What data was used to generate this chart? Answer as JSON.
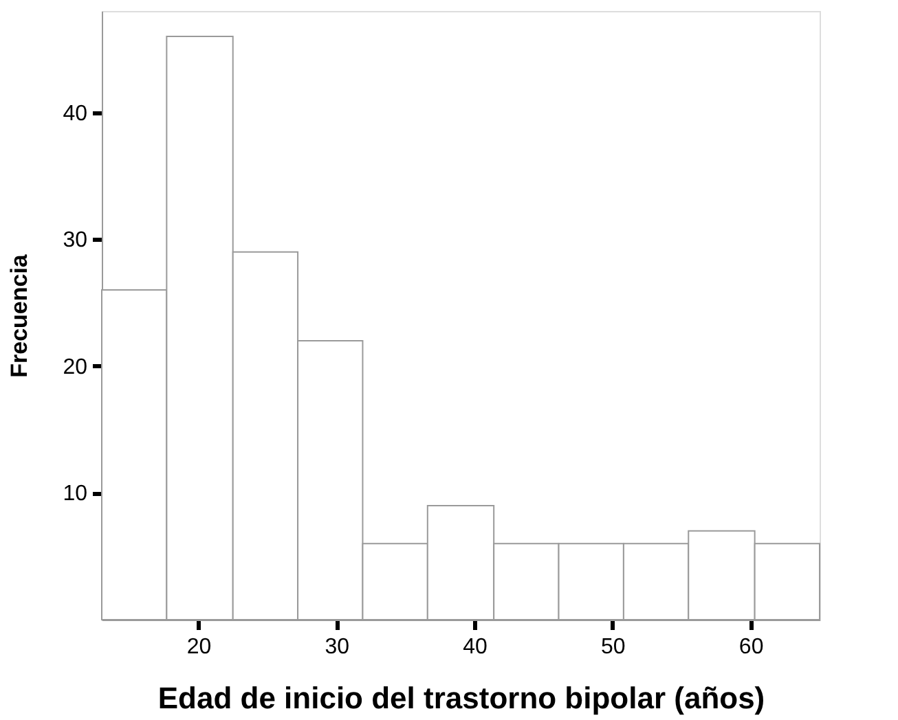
{
  "chart_data": {
    "type": "histogram",
    "xlabel": "Edad de inicio del trastorno bipolar (años)",
    "ylabel": "Frecuencia",
    "bins": [
      13,
      17.7,
      22.5,
      27.2,
      31.9,
      36.6,
      41.4,
      46.1,
      50.8,
      55.5,
      60.3,
      65
    ],
    "values": [
      26,
      46,
      29,
      22,
      6,
      9,
      6,
      6,
      6,
      7,
      6
    ],
    "color": "#ffffff",
    "xlim": [
      13,
      65
    ],
    "xticks": [
      20,
      30,
      40,
      50,
      60
    ],
    "ylim": [
      0,
      48
    ],
    "yticks": [
      10,
      20,
      30,
      40
    ],
    "grid": false
  }
}
